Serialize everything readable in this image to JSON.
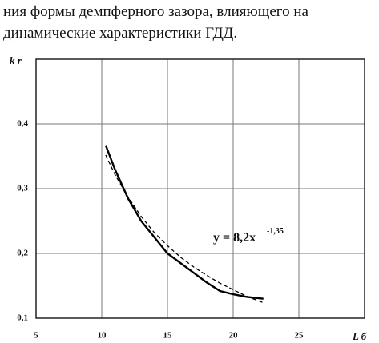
{
  "text": [
    "ния формы демпферного зазора, влияющего на",
    "динамические характеристики ГДД."
  ],
  "chart_data": {
    "type": "line",
    "ylabel": "k r",
    "xlabel": "L б",
    "annotation": {
      "text": "y = 8,2x",
      "superscript": "-1,35"
    },
    "xlim": [
      5,
      30
    ],
    "ylim": [
      0.1,
      0.5
    ],
    "xticks": [
      5,
      10,
      15,
      20,
      25
    ],
    "yticks": [
      {
        "value": 0.1,
        "label": "0,1"
      },
      {
        "value": 0.2,
        "label": "0,2"
      },
      {
        "value": 0.3,
        "label": "0,3"
      },
      {
        "value": 0.4,
        "label": "0,4"
      }
    ],
    "grid": true,
    "series": [
      {
        "color": "#000000",
        "dashed": false,
        "x": [
          10.3,
          11,
          12,
          13,
          14,
          15,
          16,
          17,
          18,
          19,
          20,
          21,
          22.3
        ],
        "values": [
          0.367,
          0.33,
          0.285,
          0.25,
          0.225,
          0.2,
          0.185,
          0.17,
          0.155,
          0.142,
          0.137,
          0.133,
          0.13
        ]
      },
      {
        "color": "#000000",
        "dashed": true,
        "x": [
          10.3,
          11,
          12,
          13,
          14,
          15,
          16,
          17,
          18,
          19,
          20,
          21,
          22.3
        ],
        "values": [
          0.352,
          0.322,
          0.287,
          0.257,
          0.232,
          0.212,
          0.194,
          0.179,
          0.166,
          0.154,
          0.144,
          0.134,
          0.124
        ]
      }
    ]
  }
}
